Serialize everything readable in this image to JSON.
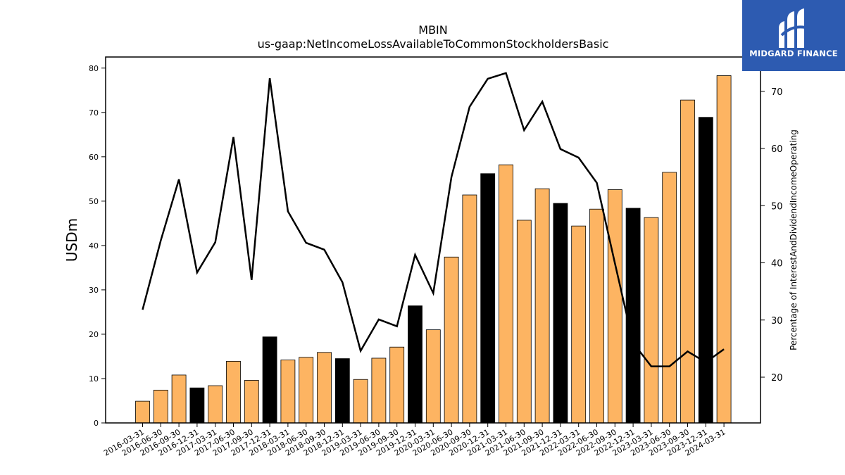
{
  "chart_data": {
    "type": "bar",
    "title": "MBIN",
    "subtitle": "us-gaap:NetIncomeLossAvailableToCommonStockholdersBasic",
    "ylabel": "USDm",
    "y2label": "Percentage of InterestAndDividendIncomeOperating",
    "ylim": [
      0,
      82.5
    ],
    "y2lim": [
      12,
      76
    ],
    "yticks": [
      0,
      10,
      20,
      30,
      40,
      50,
      60,
      70,
      80
    ],
    "y2ticks": [
      20,
      30,
      40,
      50,
      60,
      70
    ],
    "categories": [
      "2016-03-31",
      "2016-06-30",
      "2016-09-30",
      "2016-12-31",
      "2017-03-31",
      "2017-06-30",
      "2017-09-30",
      "2017-12-31",
      "2018-03-31",
      "2018-06-30",
      "2018-09-30",
      "2018-12-31",
      "2019-03-31",
      "2019-06-30",
      "2019-09-30",
      "2019-12-31",
      "2020-03-31",
      "2020-06-30",
      "2020-09-30",
      "2020-12-31",
      "2021-03-31",
      "2021-06-30",
      "2021-09-30",
      "2021-12-31",
      "2022-03-31",
      "2022-06-30",
      "2022-09-30",
      "2022-12-31",
      "2023-03-31",
      "2023-06-30",
      "2023-09-30",
      "2023-12-31",
      "2024-03-31"
    ],
    "series": [
      {
        "kind": "bar",
        "values": [
          4.9,
          7.4,
          10.8,
          7.9,
          8.4,
          13.9,
          9.6,
          19.4,
          14.2,
          14.8,
          15.9,
          14.5,
          9.8,
          14.6,
          17.1,
          26.4,
          21.0,
          37.4,
          51.4,
          56.2,
          58.2,
          45.7,
          52.8,
          49.5,
          44.4,
          48.2,
          52.6,
          48.4,
          46.3,
          56.5,
          72.8,
          68.9,
          78.3
        ],
        "highlight": [
          false,
          false,
          false,
          true,
          false,
          false,
          false,
          true,
          false,
          false,
          false,
          true,
          false,
          false,
          false,
          true,
          false,
          false,
          false,
          true,
          false,
          false,
          false,
          true,
          false,
          false,
          false,
          true,
          false,
          false,
          false,
          true,
          false
        ],
        "color": "#fdb462",
        "highlight_color": "#000000"
      },
      {
        "kind": "line",
        "axis": "right",
        "values": [
          31.8,
          43.9,
          54.6,
          38.3,
          43.6,
          62.0,
          37.0,
          72.3,
          49.0,
          43.5,
          42.3,
          36.6,
          24.6,
          30.1,
          28.9,
          41.4,
          34.7,
          55.0,
          67.3,
          72.2,
          73.2,
          63.2,
          68.2,
          59.9,
          58.4,
          54.0,
          39.9,
          26.0,
          21.9,
          21.9,
          24.5,
          22.6,
          24.9
        ],
        "color": "#000000"
      }
    ]
  },
  "logo": {
    "text": "MIDGARD FINANCE",
    "color": "#2d5bb1"
  }
}
